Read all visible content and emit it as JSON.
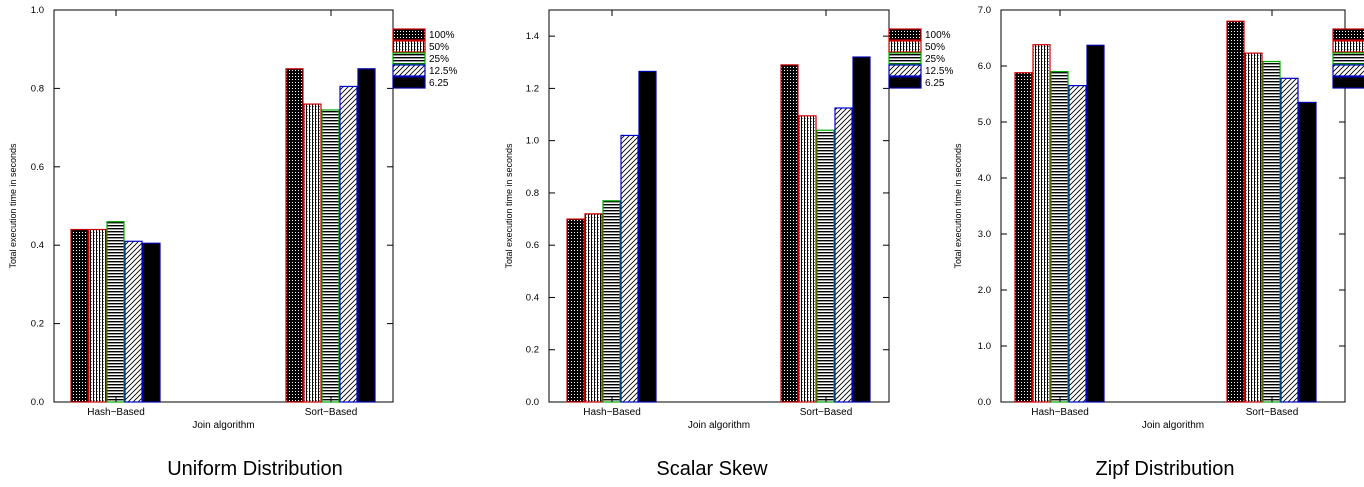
{
  "chart_data": [
    {
      "type": "bar",
      "caption": "Uniform Distribution",
      "categories": [
        "Hash−Based",
        "Sort−Based"
      ],
      "xlabel": "Join algorithm",
      "ylabel": "Total execution time in seconds",
      "ylim": [
        0,
        1.0
      ],
      "yticks": [
        "0.0",
        "0.2",
        "0.4",
        "0.6",
        "0.8",
        "1.0"
      ],
      "ytick_values": [
        0,
        0.2,
        0.4,
        0.6,
        0.8,
        1.0
      ],
      "legend_position": "right",
      "series": [
        {
          "name": "100%",
          "values": [
            0.44,
            0.85
          ]
        },
        {
          "name": "50%",
          "values": [
            0.44,
            0.76
          ]
        },
        {
          "name": "25%",
          "values": [
            0.46,
            0.745
          ]
        },
        {
          "name": "12.5%",
          "values": [
            0.41,
            0.805
          ]
        },
        {
          "name": "6.25",
          "values": [
            0.405,
            0.85
          ]
        }
      ]
    },
    {
      "type": "bar",
      "caption": "Scalar Skew",
      "categories": [
        "Hash−Based",
        "Sort−Based"
      ],
      "xlabel": "Join algorithm",
      "ylabel": "Total execution time in seconds",
      "ylim": [
        0,
        1.5
      ],
      "yticks": [
        "0.0",
        "0.2",
        "0.4",
        "0.6",
        "0.8",
        "1.0",
        "1.2",
        "1.4"
      ],
      "ytick_values": [
        0,
        0.2,
        0.4,
        0.6,
        0.8,
        1.0,
        1.2,
        1.4
      ],
      "legend_position": "right",
      "series": [
        {
          "name": "100%",
          "values": [
            0.7,
            1.29
          ]
        },
        {
          "name": "50%",
          "values": [
            0.72,
            1.095
          ]
        },
        {
          "name": "25%",
          "values": [
            0.77,
            1.04
          ]
        },
        {
          "name": "12.5%",
          "values": [
            1.02,
            1.125
          ]
        },
        {
          "name": "6.25",
          "values": [
            1.265,
            1.32
          ]
        }
      ]
    },
    {
      "type": "bar",
      "caption": "Zipf Distribution",
      "categories": [
        "Hash−Based",
        "Sort−Based"
      ],
      "xlabel": "Join algorithm",
      "ylabel": "Total execution time in seconds",
      "ylim": [
        0,
        7.0
      ],
      "yticks": [
        "0.0",
        "1.0",
        "2.0",
        "3.0",
        "4.0",
        "5.0",
        "6.0",
        "7.0"
      ],
      "ytick_values": [
        0,
        1,
        2,
        3,
        4,
        5,
        6,
        7
      ],
      "legend_position": "right (clipped)",
      "series": [
        {
          "name": "100%",
          "values": [
            5.88,
            6.8
          ]
        },
        {
          "name": "50%",
          "values": [
            6.38,
            6.23
          ]
        },
        {
          "name": "25%",
          "values": [
            5.9,
            6.08
          ]
        },
        {
          "name": "12.5%",
          "values": [
            5.65,
            5.78
          ]
        },
        {
          "name": "6.25",
          "values": [
            6.37,
            5.35
          ]
        }
      ]
    }
  ],
  "series_colors": [
    "#cc0000",
    "#cc0000",
    "#00aa00",
    "#0000cc",
    "#0000aa"
  ]
}
